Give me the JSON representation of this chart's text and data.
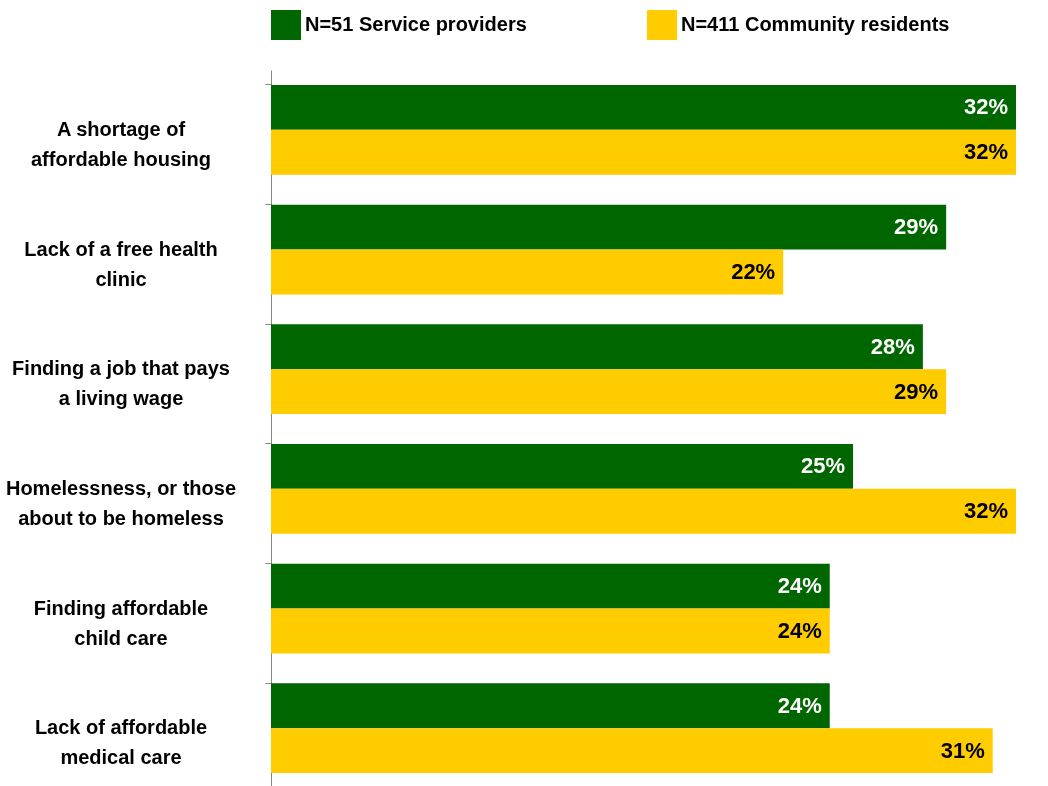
{
  "chart_data": {
    "type": "bar",
    "orientation": "horizontal",
    "legend": "top",
    "categories": [
      "A shortage of affordable housing",
      "Lack of a free health clinic",
      "Finding a job that pays a living wage",
      "Homelessness, or those about to be homeless",
      "Finding affordable child care",
      "Lack of affordable medical care"
    ],
    "series": [
      {
        "name": "N=51 Service providers",
        "color": "#006600",
        "values": [
          32,
          29,
          28,
          25,
          24,
          24
        ],
        "value_labels": [
          "32%",
          "29%",
          "28%",
          "25%",
          "24%",
          "24%"
        ]
      },
      {
        "name": "N=411 Community residents",
        "color": "#ffcc00",
        "values": [
          32,
          22,
          29,
          32,
          24,
          31
        ],
        "value_labels": [
          "32%",
          "22%",
          "29%",
          "32%",
          "24%",
          "31%"
        ]
      }
    ]
  }
}
